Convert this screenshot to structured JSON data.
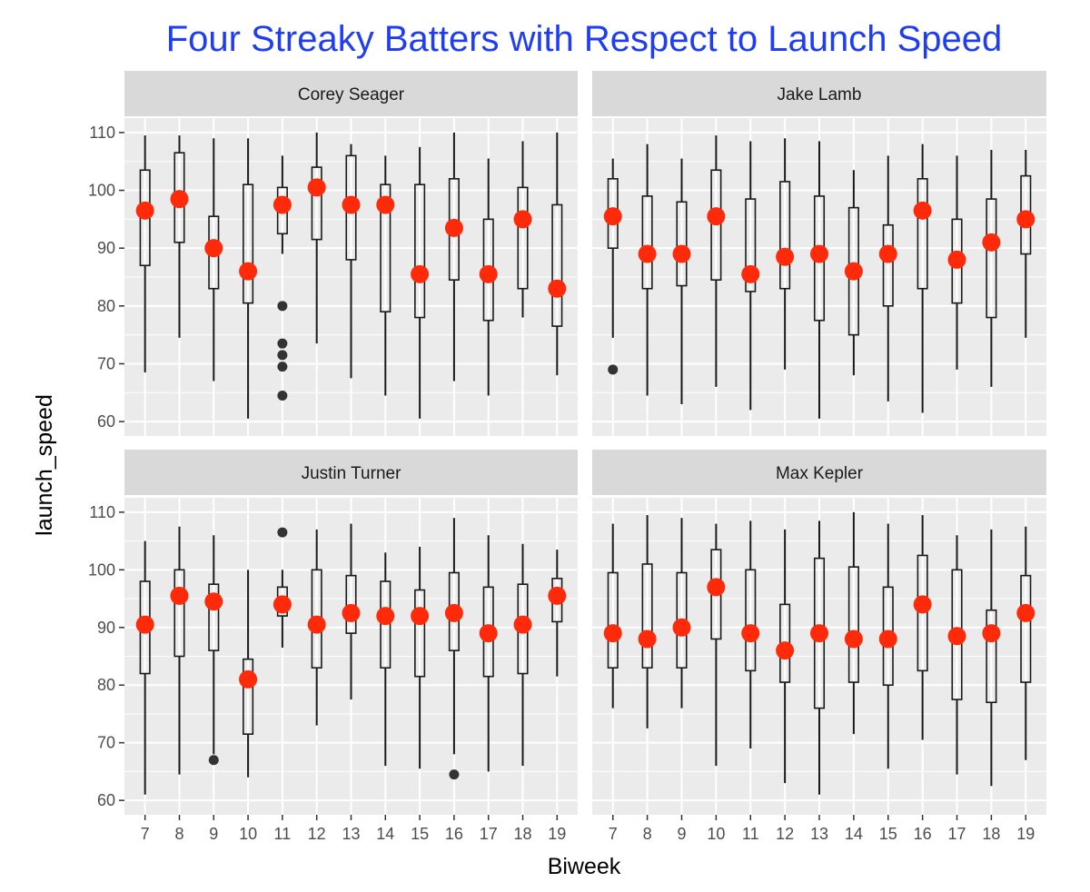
{
  "chart_data": {
    "type": "boxplot",
    "title": "Four Streaky Batters with Respect to Launch Speed",
    "xlabel": "Biweek",
    "ylabel": "launch_speed",
    "categories": [
      "7",
      "8",
      "9",
      "10",
      "11",
      "12",
      "13",
      "14",
      "15",
      "16",
      "17",
      "18",
      "19"
    ],
    "ylim": [
      57.5,
      112.5
    ],
    "yticks": [
      60,
      70,
      80,
      90,
      100,
      110
    ],
    "grid": true,
    "colors": {
      "title": "#1f3df5",
      "panel_bg": "#ebebeb",
      "strip_bg": "#d9d9d9",
      "grid": "#ffffff",
      "box": "#1a1a1a",
      "median_point": "#ff2a0a",
      "outlier": "#333333"
    },
    "panels": [
      {
        "name": "Corey Seager",
        "boxes": [
          {
            "x": "7",
            "min": 68.5,
            "q1": 87,
            "q3": 103.5,
            "max": 109.5,
            "point": 96.5,
            "outliers": []
          },
          {
            "x": "8",
            "min": 74.5,
            "q1": 91,
            "q3": 106.5,
            "max": 109.5,
            "point": 98.5,
            "outliers": []
          },
          {
            "x": "9",
            "min": 67,
            "q1": 83,
            "q3": 95.5,
            "max": 109,
            "point": 90,
            "outliers": []
          },
          {
            "x": "10",
            "min": 60.5,
            "q1": 80.5,
            "q3": 101,
            "max": 109,
            "point": 86,
            "outliers": []
          },
          {
            "x": "11",
            "min": 89,
            "q1": 92.5,
            "q3": 100.5,
            "max": 106,
            "point": 97.5,
            "outliers": [
              80,
              73.5,
              71.5,
              69.5,
              64.5
            ]
          },
          {
            "x": "12",
            "min": 73.5,
            "q1": 91.5,
            "q3": 104,
            "max": 110,
            "point": 100.5,
            "outliers": []
          },
          {
            "x": "13",
            "min": 67.5,
            "q1": 88,
            "q3": 106,
            "max": 108,
            "point": 97.5,
            "outliers": []
          },
          {
            "x": "14",
            "min": 64.5,
            "q1": 79,
            "q3": 101,
            "max": 106,
            "point": 97.5,
            "outliers": []
          },
          {
            "x": "15",
            "min": 60.5,
            "q1": 78,
            "q3": 101,
            "max": 107.5,
            "point": 85.5,
            "outliers": []
          },
          {
            "x": "16",
            "min": 67,
            "q1": 84.5,
            "q3": 102,
            "max": 110,
            "point": 93.5,
            "outliers": []
          },
          {
            "x": "17",
            "min": 64.5,
            "q1": 77.5,
            "q3": 95,
            "max": 105.5,
            "point": 85.5,
            "outliers": []
          },
          {
            "x": "18",
            "min": 78,
            "q1": 83,
            "q3": 100.5,
            "max": 108.5,
            "point": 95,
            "outliers": []
          },
          {
            "x": "19",
            "min": 68,
            "q1": 76.5,
            "q3": 97.5,
            "max": 110,
            "point": 83,
            "outliers": []
          }
        ]
      },
      {
        "name": "Jake Lamb",
        "boxes": [
          {
            "x": "7",
            "min": 74.5,
            "q1": 90,
            "q3": 102,
            "max": 105.5,
            "point": 95.5,
            "outliers": [
              69
            ]
          },
          {
            "x": "8",
            "min": 64.5,
            "q1": 83,
            "q3": 99,
            "max": 108,
            "point": 89,
            "outliers": []
          },
          {
            "x": "9",
            "min": 63,
            "q1": 83.5,
            "q3": 98,
            "max": 105.5,
            "point": 89,
            "outliers": []
          },
          {
            "x": "10",
            "min": 66,
            "q1": 84.5,
            "q3": 103.5,
            "max": 109.5,
            "point": 95.5,
            "outliers": []
          },
          {
            "x": "11",
            "min": 62,
            "q1": 82.5,
            "q3": 98.5,
            "max": 108.5,
            "point": 85.5,
            "outliers": []
          },
          {
            "x": "12",
            "min": 69,
            "q1": 83,
            "q3": 101.5,
            "max": 109,
            "point": 88.5,
            "outliers": []
          },
          {
            "x": "13",
            "min": 60.5,
            "q1": 77.5,
            "q3": 99,
            "max": 108.5,
            "point": 89,
            "outliers": []
          },
          {
            "x": "14",
            "min": 68,
            "q1": 75,
            "q3": 97,
            "max": 103.5,
            "point": 86,
            "outliers": []
          },
          {
            "x": "15",
            "min": 63.5,
            "q1": 80,
            "q3": 94,
            "max": 106,
            "point": 89,
            "outliers": []
          },
          {
            "x": "16",
            "min": 61.5,
            "q1": 83,
            "q3": 102,
            "max": 108,
            "point": 96.5,
            "outliers": []
          },
          {
            "x": "17",
            "min": 69,
            "q1": 80.5,
            "q3": 95,
            "max": 106,
            "point": 88,
            "outliers": []
          },
          {
            "x": "18",
            "min": 66,
            "q1": 78,
            "q3": 98.5,
            "max": 107,
            "point": 91,
            "outliers": []
          },
          {
            "x": "19",
            "min": 74.5,
            "q1": 89,
            "q3": 102.5,
            "max": 107,
            "point": 95,
            "outliers": []
          }
        ]
      },
      {
        "name": "Justin Turner",
        "boxes": [
          {
            "x": "7",
            "min": 61,
            "q1": 82,
            "q3": 98,
            "max": 105,
            "point": 90.5,
            "outliers": []
          },
          {
            "x": "8",
            "min": 64.5,
            "q1": 85,
            "q3": 100,
            "max": 107.5,
            "point": 95.5,
            "outliers": []
          },
          {
            "x": "9",
            "min": 68,
            "q1": 86,
            "q3": 97.5,
            "max": 106,
            "point": 94.5,
            "outliers": [
              67
            ]
          },
          {
            "x": "10",
            "min": 64,
            "q1": 71.5,
            "q3": 84.5,
            "max": 100,
            "point": 81,
            "outliers": []
          },
          {
            "x": "11",
            "min": 86.5,
            "q1": 92,
            "q3": 97,
            "max": 100,
            "point": 94,
            "outliers": [
              106.5
            ]
          },
          {
            "x": "12",
            "min": 73,
            "q1": 83,
            "q3": 100,
            "max": 107,
            "point": 90.5,
            "outliers": []
          },
          {
            "x": "13",
            "min": 77.5,
            "q1": 89,
            "q3": 99,
            "max": 108,
            "point": 92.5,
            "outliers": []
          },
          {
            "x": "14",
            "min": 66,
            "q1": 83,
            "q3": 98,
            "max": 103,
            "point": 92,
            "outliers": []
          },
          {
            "x": "15",
            "min": 65.5,
            "q1": 81.5,
            "q3": 96.5,
            "max": 104,
            "point": 92,
            "outliers": []
          },
          {
            "x": "16",
            "min": 68,
            "q1": 86,
            "q3": 99.5,
            "max": 109,
            "point": 92.5,
            "outliers": [
              64.5
            ]
          },
          {
            "x": "17",
            "min": 65,
            "q1": 81.5,
            "q3": 97,
            "max": 106,
            "point": 89,
            "outliers": []
          },
          {
            "x": "18",
            "min": 66,
            "q1": 82,
            "q3": 97.5,
            "max": 104.5,
            "point": 90.5,
            "outliers": []
          },
          {
            "x": "19",
            "min": 81.5,
            "q1": 91,
            "q3": 98.5,
            "max": 103.5,
            "point": 95.5,
            "outliers": []
          }
        ]
      },
      {
        "name": "Max Kepler",
        "boxes": [
          {
            "x": "7",
            "min": 76,
            "q1": 83,
            "q3": 99.5,
            "max": 108,
            "point": 89,
            "outliers": []
          },
          {
            "x": "8",
            "min": 72.5,
            "q1": 83,
            "q3": 101,
            "max": 109.5,
            "point": 88,
            "outliers": []
          },
          {
            "x": "9",
            "min": 76,
            "q1": 83,
            "q3": 99.5,
            "max": 109,
            "point": 90,
            "outliers": []
          },
          {
            "x": "10",
            "min": 66,
            "q1": 88,
            "q3": 103.5,
            "max": 108,
            "point": 97,
            "outliers": []
          },
          {
            "x": "11",
            "min": 69,
            "q1": 82.5,
            "q3": 100,
            "max": 108.5,
            "point": 89,
            "outliers": []
          },
          {
            "x": "12",
            "min": 63,
            "q1": 80.5,
            "q3": 94,
            "max": 107,
            "point": 86,
            "outliers": []
          },
          {
            "x": "13",
            "min": 61,
            "q1": 76,
            "q3": 102,
            "max": 108.5,
            "point": 89,
            "outliers": []
          },
          {
            "x": "14",
            "min": 71.5,
            "q1": 80.5,
            "q3": 100.5,
            "max": 110,
            "point": 88,
            "outliers": []
          },
          {
            "x": "15",
            "min": 65.5,
            "q1": 80,
            "q3": 97,
            "max": 108,
            "point": 88,
            "outliers": []
          },
          {
            "x": "16",
            "min": 70.5,
            "q1": 82.5,
            "q3": 102.5,
            "max": 109.5,
            "point": 94,
            "outliers": []
          },
          {
            "x": "17",
            "min": 64.5,
            "q1": 77.5,
            "q3": 100,
            "max": 106,
            "point": 88.5,
            "outliers": []
          },
          {
            "x": "18",
            "min": 62.5,
            "q1": 77,
            "q3": 93,
            "max": 107,
            "point": 89,
            "outliers": []
          },
          {
            "x": "19",
            "min": 67,
            "q1": 80.5,
            "q3": 99,
            "max": 107.5,
            "point": 92.5,
            "outliers": []
          }
        ]
      }
    ]
  }
}
